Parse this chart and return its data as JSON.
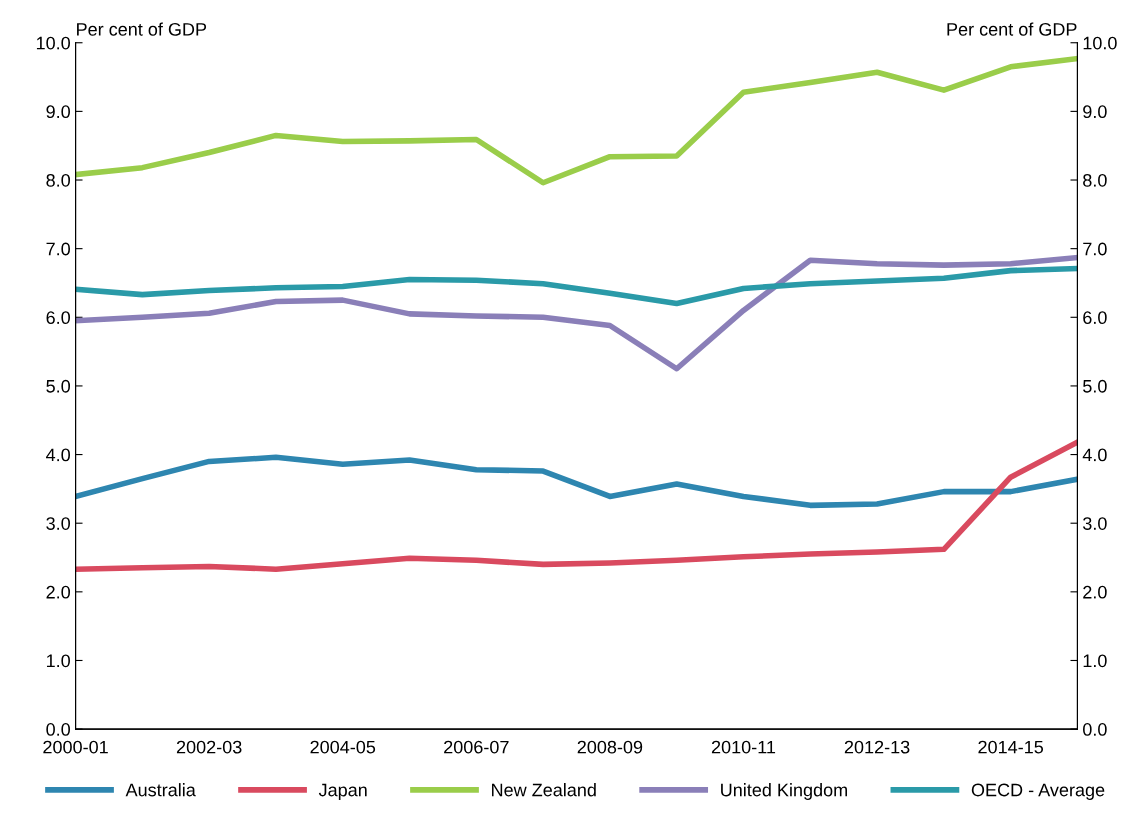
{
  "chart_data": {
    "type": "line",
    "ylabel": "Per cent of GDP",
    "y2label": "Per cent of GDP",
    "categories": [
      "2000-01",
      null,
      "2002-03",
      null,
      "2004-05",
      null,
      "2006-07",
      null,
      "2008-09",
      null,
      "2010-11",
      null,
      "2012-13",
      null,
      "2014-15",
      null
    ],
    "series": [
      {
        "name": "Australia",
        "color": "#2e86b0",
        "values": [
          3.39,
          3.65,
          3.9,
          3.96,
          3.86,
          3.92,
          3.78,
          3.76,
          3.39,
          3.57,
          3.39,
          3.26,
          3.28,
          3.46,
          3.46,
          3.64
        ]
      },
      {
        "name": "Japan",
        "color": "#d94a5f",
        "values": [
          2.33,
          2.35,
          2.37,
          2.33,
          2.41,
          2.49,
          2.46,
          2.4,
          2.42,
          2.46,
          2.51,
          2.55,
          2.58,
          2.62,
          3.67,
          4.18
        ]
      },
      {
        "name": "New Zealand",
        "color": "#9acd4a",
        "values": [
          8.08,
          8.18,
          8.4,
          8.65,
          8.56,
          8.57,
          8.59,
          7.96,
          8.34,
          8.35,
          9.28,
          9.42,
          9.57,
          9.31,
          9.65,
          9.77
        ]
      },
      {
        "name": "United Kingdom",
        "color": "#8a7fb8",
        "values": [
          5.95,
          6.0,
          6.06,
          6.23,
          6.25,
          6.05,
          6.02,
          6.0,
          5.88,
          5.25,
          6.1,
          6.83,
          6.78,
          6.76,
          6.78,
          6.87
        ]
      },
      {
        "name": "OECD - Average",
        "color": "#2a9aa8",
        "values": [
          6.41,
          6.33,
          6.39,
          6.43,
          6.45,
          6.55,
          6.54,
          6.49,
          6.35,
          6.2,
          6.42,
          6.49,
          6.53,
          6.57,
          6.68,
          6.71
        ]
      }
    ],
    "ylim": [
      0,
      10
    ],
    "yticks": [
      {
        "value": 0,
        "label": "0.0"
      },
      {
        "value": 1,
        "label": "1.0"
      },
      {
        "value": 2,
        "label": "2.0"
      },
      {
        "value": 3,
        "label": "3.0"
      },
      {
        "value": 4,
        "label": "4.0"
      },
      {
        "value": 5,
        "label": "5.0"
      },
      {
        "value": 6,
        "label": "6.0"
      },
      {
        "value": 7,
        "label": "7.0"
      },
      {
        "value": 8,
        "label": "8.0"
      },
      {
        "value": 9,
        "label": "9.0"
      },
      {
        "value": 10,
        "label": "10.0"
      }
    ],
    "y2lim": [
      0,
      10
    ],
    "y2ticks": [
      {
        "value": 0,
        "label": "0.0"
      },
      {
        "value": 1,
        "label": "1.0"
      },
      {
        "value": 2,
        "label": "2.0"
      },
      {
        "value": 3,
        "label": "3.0"
      },
      {
        "value": 4,
        "label": "4.0"
      },
      {
        "value": 5,
        "label": "5.0"
      },
      {
        "value": 6,
        "label": "6.0"
      },
      {
        "value": 7,
        "label": "7.0"
      },
      {
        "value": 8,
        "label": "8.0"
      },
      {
        "value": 9,
        "label": "9.0"
      },
      {
        "value": 10,
        "label": "10.0"
      }
    ],
    "legend": "bottom",
    "grid": false,
    "marker": "none",
    "line_style": "solid"
  }
}
